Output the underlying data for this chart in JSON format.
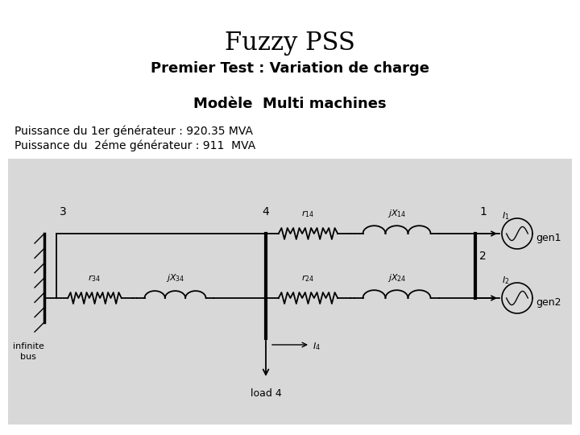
{
  "title1": "Fuzzy PSS",
  "title2": "Premier Test : Variation de charge",
  "subtitle": "Modèle  Multi machines",
  "line1": "Puissance du 1er générateur : 920.35 MVA",
  "line2": "Puissance du  2éme générateur : 911  MVA",
  "bg_color": "#ffffff",
  "circuit_bg": "#d8d8d8",
  "title1_fontsize": 22,
  "title2_fontsize": 13,
  "subtitle_fontsize": 13,
  "body_fontsize": 10
}
